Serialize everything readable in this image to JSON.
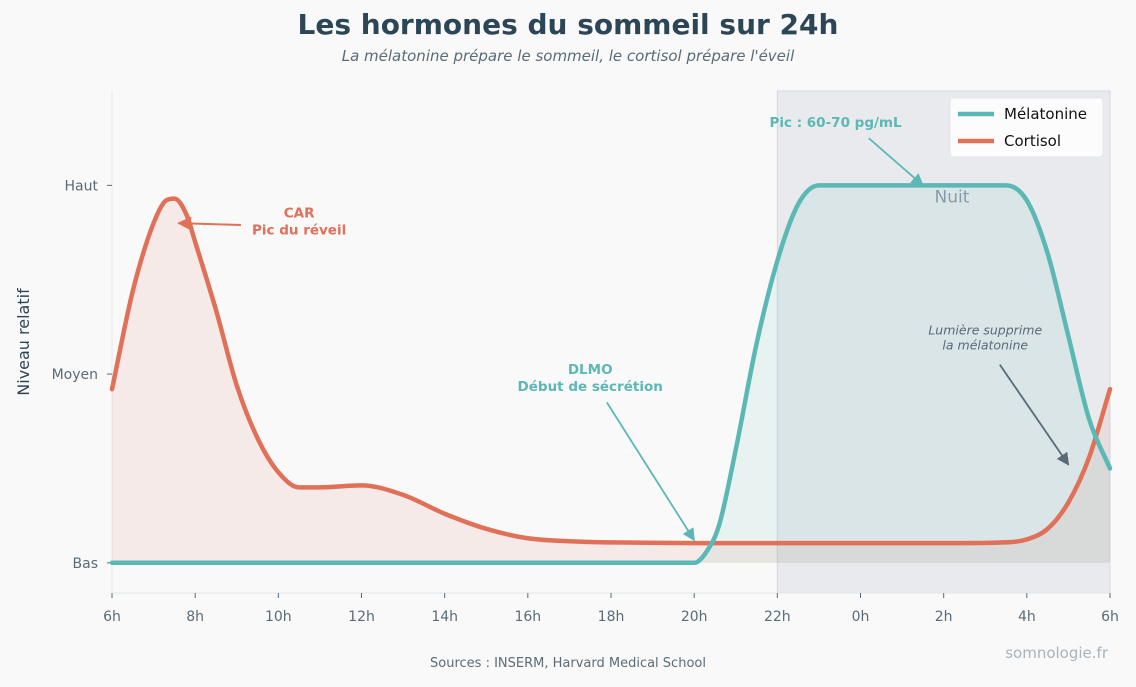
{
  "title": "Les hormones du sommeil sur 24h",
  "subtitle": "La mélatonine prépare le sommeil, le cortisol prépare l'éveil",
  "source": "Sources : INSERM, Harvard Medical School",
  "brand": "somnologie.fr",
  "colors": {
    "melatonin": "#5bb8b4",
    "cortisol": "#e07057",
    "night": "#e8eaee",
    "dark": "#5a6b78"
  },
  "chart_data": {
    "type": "line",
    "title": "Les hormones du sommeil sur 24h",
    "subtitle": "La mélatonine prépare le sommeil, le cortisol prépare l'éveil",
    "ylabel": "Niveau relatif",
    "xlabel": "",
    "xlim": [
      6,
      30
    ],
    "ylim": [
      -0.08,
      1.25
    ],
    "x_ticks": [
      6,
      8,
      10,
      12,
      14,
      16,
      18,
      20,
      22,
      24,
      26,
      28,
      30
    ],
    "x_tick_labels": [
      "6h",
      "8h",
      "10h",
      "12h",
      "14h",
      "16h",
      "18h",
      "20h",
      "22h",
      "0h",
      "2h",
      "4h",
      "6h"
    ],
    "y_ticks": [
      0,
      0.5,
      1
    ],
    "y_tick_labels": [
      "Bas",
      "Moyen",
      "Haut"
    ],
    "legend": {
      "position": "top-right",
      "entries": [
        "Mélatonine",
        "Cortisol"
      ]
    },
    "night_band": {
      "from": 22,
      "to": 30,
      "label": "Nuit"
    },
    "series": [
      {
        "name": "Mélatonine",
        "x": [
          6,
          20,
          20.3,
          20.6,
          21,
          21.5,
          22,
          22.5,
          23,
          23.5,
          27,
          27.5,
          28,
          28.5,
          29,
          29.5,
          30
        ],
        "y": [
          0,
          0,
          0.03,
          0.1,
          0.3,
          0.58,
          0.8,
          0.95,
          1,
          1,
          1,
          1,
          0.96,
          0.82,
          0.6,
          0.38,
          0.25
        ]
      },
      {
        "name": "Cortisol",
        "x": [
          6,
          6.5,
          7,
          7.3,
          7.5,
          7.8,
          8,
          8.5,
          9,
          9.5,
          10,
          10.5,
          11,
          12,
          13,
          14,
          15,
          16,
          17,
          18,
          20,
          22,
          24,
          26,
          27.5,
          28,
          28.5,
          29,
          29.5,
          30
        ],
        "y": [
          0.46,
          0.72,
          0.9,
          0.96,
          0.965,
          0.92,
          0.85,
          0.67,
          0.47,
          0.33,
          0.24,
          0.2,
          0.2,
          0.205,
          0.18,
          0.13,
          0.09,
          0.065,
          0.057,
          0.054,
          0.052,
          0.052,
          0.052,
          0.052,
          0.054,
          0.062,
          0.09,
          0.16,
          0.28,
          0.46
        ]
      }
    ],
    "annotations": [
      {
        "text": "CAR",
        "text2": "Pic du réveil",
        "x": 7.6,
        "y": 0.9
      },
      {
        "text": "DLMO",
        "text2": "Début de sécrétion",
        "x": 20,
        "y": 0.06
      },
      {
        "text": "Pic : 60-70 pg/mL",
        "x": 25.5,
        "y": 1
      },
      {
        "text": "Lumière supprime",
        "text2": "la mélatonine",
        "x": 29,
        "y": 0.26
      }
    ]
  }
}
